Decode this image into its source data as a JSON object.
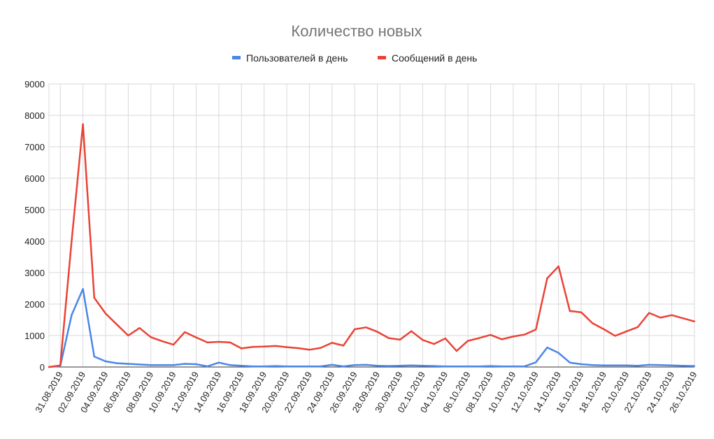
{
  "chart_data": {
    "type": "line",
    "title": "Количество новых",
    "legend_position": "top",
    "grid": true,
    "ylim": [
      0,
      9000
    ],
    "y_ticks": [
      0,
      1000,
      2000,
      3000,
      4000,
      5000,
      6000,
      7000,
      8000,
      9000
    ],
    "x_tick_labels": [
      "31.08.2019",
      "02.09.2019",
      "04.09.2019",
      "06.09.2019",
      "08.09.2019",
      "10.09.2019",
      "12.09.2019",
      "14.09.2019",
      "16.09.2019",
      "18.09.2019",
      "20.09.2019",
      "22.09.2019",
      "24.09.2019",
      "26.09.2019",
      "28.09.2019",
      "30.09.2019",
      "02.10.2019",
      "04.10.2019",
      "06.10.2019",
      "08.10.2019",
      "10.10.2019",
      "12.10.2019",
      "14.10.2019",
      "16.10.2019",
      "18.10.2019",
      "20.10.2019",
      "22.10.2019",
      "24.10.2019",
      "26.10.2019"
    ],
    "x": [
      "30.08.2019",
      "31.08.2019",
      "01.09.2019",
      "02.09.2019",
      "03.09.2019",
      "04.09.2019",
      "05.09.2019",
      "06.09.2019",
      "07.09.2019",
      "08.09.2019",
      "09.09.2019",
      "10.09.2019",
      "11.09.2019",
      "12.09.2019",
      "13.09.2019",
      "14.09.2019",
      "15.09.2019",
      "16.09.2019",
      "17.09.2019",
      "18.09.2019",
      "19.09.2019",
      "20.09.2019",
      "21.09.2019",
      "22.09.2019",
      "23.09.2019",
      "24.09.2019",
      "25.09.2019",
      "26.09.2019",
      "27.09.2019",
      "28.09.2019",
      "29.09.2019",
      "30.09.2019",
      "01.10.2019",
      "02.10.2019",
      "03.10.2019",
      "04.10.2019",
      "05.10.2019",
      "06.10.2019",
      "07.10.2019",
      "08.10.2019",
      "09.10.2019",
      "10.10.2019",
      "11.10.2019",
      "12.10.2019",
      "13.10.2019",
      "14.10.2019",
      "15.10.2019",
      "16.10.2019",
      "17.10.2019",
      "18.10.2019",
      "19.10.2019",
      "20.10.2019",
      "21.10.2019",
      "22.10.2019",
      "23.10.2019",
      "24.10.2019",
      "25.10.2019",
      "26.10.2019"
    ],
    "series": [
      {
        "name": "Пользователей в день",
        "color": "#4a86e8",
        "values": [
          0,
          30,
          1650,
          2480,
          330,
          180,
          120,
          100,
          80,
          60,
          60,
          60,
          100,
          90,
          20,
          140,
          60,
          40,
          20,
          20,
          30,
          20,
          20,
          20,
          20,
          70,
          20,
          60,
          70,
          40,
          30,
          40,
          50,
          40,
          30,
          20,
          20,
          20,
          20,
          30,
          20,
          20,
          20,
          150,
          620,
          450,
          140,
          90,
          60,
          50,
          50,
          50,
          40,
          70,
          60,
          50,
          40,
          30
        ]
      },
      {
        "name": "Сообщений в день",
        "color": "#ea4335",
        "values": [
          0,
          50,
          4000,
          7720,
          2200,
          1700,
          1350,
          1000,
          1240,
          950,
          820,
          710,
          1110,
          940,
          780,
          800,
          780,
          590,
          640,
          650,
          670,
          630,
          600,
          550,
          610,
          770,
          680,
          1200,
          1260,
          1120,
          920,
          870,
          1140,
          860,
          730,
          910,
          510,
          830,
          920,
          1020,
          880,
          970,
          1030,
          1190,
          2820,
          3200,
          1780,
          1740,
          1390,
          1200,
          990,
          1130,
          1270,
          1720,
          1570,
          1650,
          1550,
          1450
        ]
      }
    ]
  }
}
